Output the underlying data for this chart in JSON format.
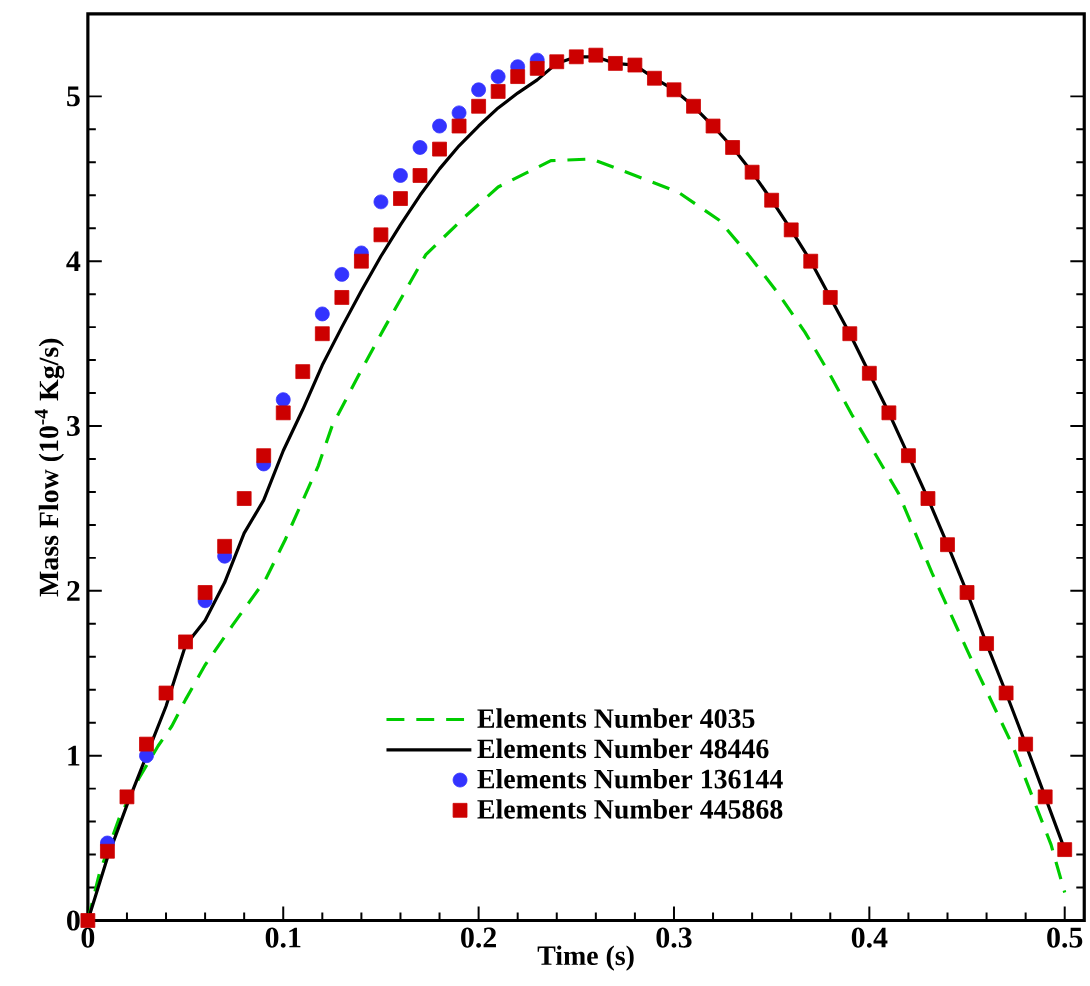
{
  "chart_data": {
    "type": "line",
    "xlabel": "Time (s)",
    "ylabel": "Mass Flow (10$^{-4}$ Kg/s)",
    "xlim": [
      0,
      0.51
    ],
    "ylim": [
      0,
      5.5
    ],
    "xticks": [
      0,
      0.1,
      0.2,
      0.3,
      0.4,
      0.5
    ],
    "yticks": [
      0,
      1,
      2,
      3,
      4,
      5
    ],
    "grid": false,
    "legend": "bottom",
    "series": [
      {
        "name": "Elements Number 4035",
        "line_style": "dashed",
        "marker": "none",
        "color": "#00cc00",
        "x": [
          0,
          0.006,
          0.016,
          0.026,
          0.036,
          0.043,
          0.05,
          0.06,
          0.074,
          0.091,
          0.101,
          0.118,
          0.125,
          0.14,
          0.152,
          0.173,
          0.193,
          0.21,
          0.237,
          0.258,
          0.302,
          0.323,
          0.338,
          0.353,
          0.367,
          0.379,
          0.391,
          0.403,
          0.415,
          0.432,
          0.452,
          0.473,
          0.493,
          0.5
        ],
        "values": [
          0,
          0.29,
          0.62,
          0.86,
          1.06,
          1.18,
          1.34,
          1.55,
          1.79,
          2.07,
          2.31,
          2.76,
          3.0,
          3.34,
          3.6,
          4.04,
          4.27,
          4.45,
          4.61,
          4.62,
          4.42,
          4.25,
          4.04,
          3.81,
          3.57,
          3.33,
          3.07,
          2.83,
          2.59,
          2.11,
          1.59,
          1.07,
          0.46,
          0.17
        ]
      },
      {
        "name": "Elements Number 48446",
        "line_style": "solid",
        "marker": "none",
        "color": "#000000",
        "x": [
          0,
          0.01,
          0.02,
          0.03,
          0.04,
          0.05,
          0.06,
          0.07,
          0.08,
          0.09,
          0.1,
          0.11,
          0.12,
          0.13,
          0.14,
          0.15,
          0.16,
          0.17,
          0.18,
          0.19,
          0.2,
          0.21,
          0.22,
          0.23,
          0.24,
          0.25,
          0.26,
          0.27,
          0.28,
          0.29,
          0.3,
          0.31,
          0.32,
          0.33,
          0.34,
          0.35,
          0.36,
          0.37,
          0.38,
          0.39,
          0.4,
          0.41,
          0.42,
          0.43,
          0.44,
          0.45,
          0.46,
          0.47,
          0.48,
          0.49,
          0.5
        ],
        "values": [
          0,
          0.38,
          0.7,
          1.0,
          1.3,
          1.67,
          1.82,
          2.05,
          2.35,
          2.55,
          2.85,
          3.1,
          3.37,
          3.6,
          3.82,
          4.03,
          4.22,
          4.4,
          4.56,
          4.7,
          4.82,
          4.93,
          5.02,
          5.1,
          5.2,
          5.24,
          5.24,
          5.2,
          5.19,
          5.11,
          5.04,
          4.94,
          4.82,
          4.69,
          4.54,
          4.37,
          4.19,
          4.0,
          3.78,
          3.56,
          3.32,
          3.08,
          2.82,
          2.56,
          2.28,
          1.99,
          1.68,
          1.38,
          1.07,
          0.75,
          0.43
        ]
      },
      {
        "name": "Elements Number 136144",
        "type": "scatter",
        "marker": "circle",
        "color": "#3333ff",
        "x": [
          0.01,
          0.03,
          0.05,
          0.06,
          0.07,
          0.09,
          0.1,
          0.12,
          0.13,
          0.14,
          0.15,
          0.16,
          0.17,
          0.18,
          0.19,
          0.2,
          0.21,
          0.22,
          0.23
        ],
        "values": [
          0.47,
          1.0,
          null,
          1.94,
          2.21,
          2.77,
          3.16,
          3.68,
          3.92,
          4.05,
          4.36,
          4.52,
          4.69,
          4.82,
          4.9,
          5.04,
          5.12,
          5.18,
          5.22
        ]
      },
      {
        "name": "Elements Number 445868",
        "type": "scatter",
        "marker": "square",
        "color": "#cc0000",
        "x": [
          0,
          0.01,
          0.02,
          0.03,
          0.04,
          0.05,
          0.06,
          0.07,
          0.08,
          0.09,
          0.1,
          0.11,
          0.12,
          0.13,
          0.14,
          0.15,
          0.16,
          0.17,
          0.18,
          0.19,
          0.2,
          0.21,
          0.22,
          0.23,
          0.24,
          0.25,
          0.26,
          0.27,
          0.28,
          0.29,
          0.3,
          0.31,
          0.32,
          0.33,
          0.34,
          0.35,
          0.36,
          0.37,
          0.38,
          0.39,
          0.4,
          0.41,
          0.42,
          0.43,
          0.44,
          0.45,
          0.46,
          0.47,
          0.48,
          0.49,
          0.5
        ],
        "values": [
          0,
          0.42,
          0.75,
          1.07,
          1.38,
          1.69,
          1.99,
          2.27,
          2.56,
          2.82,
          3.08,
          3.33,
          3.56,
          3.78,
          4.0,
          4.16,
          4.38,
          4.52,
          4.68,
          4.82,
          4.94,
          5.03,
          5.12,
          5.17,
          5.21,
          5.24,
          5.25,
          5.2,
          5.19,
          5.11,
          5.04,
          4.94,
          4.82,
          4.69,
          4.54,
          4.37,
          4.19,
          4.0,
          3.78,
          3.56,
          3.32,
          3.08,
          2.82,
          2.56,
          2.28,
          1.99,
          1.68,
          1.38,
          1.07,
          0.75,
          0.43
        ]
      }
    ]
  }
}
